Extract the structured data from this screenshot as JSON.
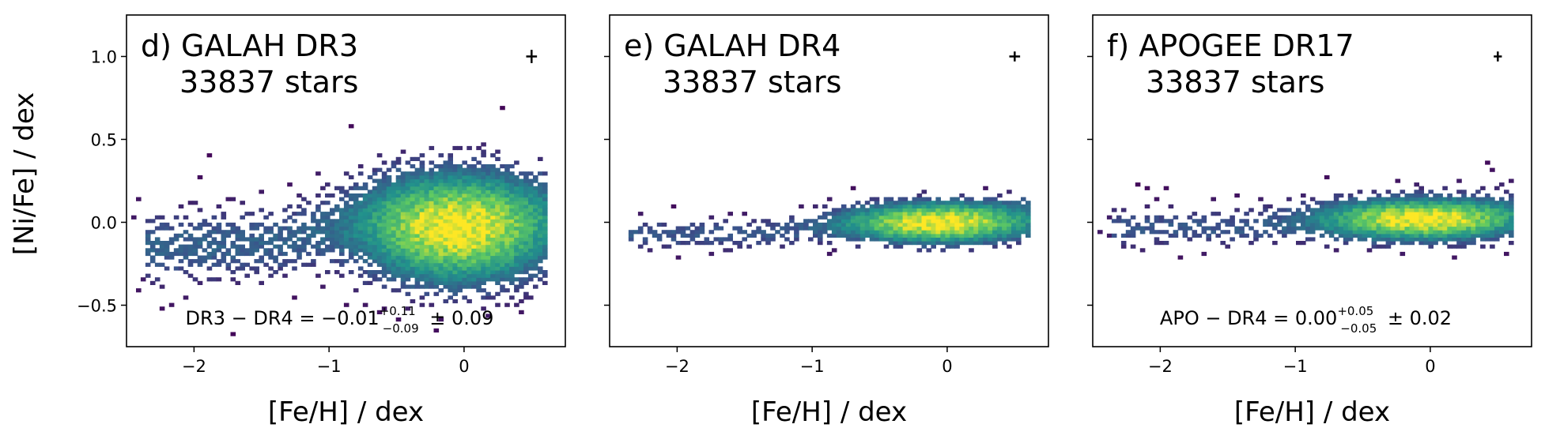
{
  "figure": {
    "y_axis_title": "[Ni/Fe] / dex",
    "x_axis_title": "[Fe/H] / dex",
    "colormap": [
      "#440154",
      "#3b528b",
      "#21918c",
      "#5ec962",
      "#fde725"
    ]
  },
  "chart_data": [
    {
      "type": "heatmap",
      "panel_label": "d) GALAH DR3",
      "count_label": "33837 stars",
      "xlabel": "[Fe/H] / dex",
      "ylabel": "[Ni/Fe] / dex",
      "xlim": [
        -2.5,
        0.75
      ],
      "ylim": [
        -0.75,
        1.25
      ],
      "x_ticks": [
        -2,
        -1,
        0
      ],
      "x_tick_labels": [
        "−2",
        "−1",
        "0"
      ],
      "y_ticks": [
        -0.5,
        0.0,
        0.5,
        1.0
      ],
      "y_tick_labels": [
        "−0.5",
        "0.0",
        "0.5",
        "1.0"
      ],
      "error_bar": {
        "x": 0.5,
        "y": 1.0,
        "xerr": 0.04,
        "yerr": 0.04
      },
      "stat": {
        "lhs": "DR3 − DR4 = −",
        "value": "0.01",
        "sup": "+0.11",
        "sub": "−0.09",
        "pm": "± 0.09"
      },
      "density": {
        "segments": [
          [
            -2.3,
            -0.15
          ],
          [
            -1.4,
            -0.12
          ],
          [
            -0.6,
            0.03
          ],
          [
            -0.1,
            -0.02
          ],
          [
            0.5,
            0.05
          ]
        ],
        "peak": [
          -0.05,
          -0.03
        ],
        "core_sx": 0.35,
        "core_sy": 0.16,
        "ridge_sy": 0.11,
        "faint_level": 0.07,
        "scatter_sy": 0.22
      }
    },
    {
      "type": "heatmap",
      "panel_label": "e) GALAH DR4",
      "count_label": "33837 stars",
      "xlabel": "[Fe/H] / dex",
      "ylabel": "",
      "xlim": [
        -2.5,
        0.75
      ],
      "ylim": [
        -0.75,
        1.25
      ],
      "x_ticks": [
        -2,
        -1,
        0
      ],
      "x_tick_labels": [
        "−2",
        "−1",
        "0"
      ],
      "y_ticks": [
        -0.5,
        0.0,
        0.5,
        1.0
      ],
      "y_tick_labels": [],
      "error_bar": {
        "x": 0.5,
        "y": 1.0,
        "xerr": 0.04,
        "yerr": 0.03
      },
      "stat": null,
      "density": {
        "segments": [
          [
            -2.3,
            -0.07
          ],
          [
            -1.4,
            -0.07
          ],
          [
            -0.6,
            -0.01
          ],
          [
            0.0,
            0.0
          ],
          [
            0.5,
            0.08
          ]
        ],
        "peak": [
          -0.05,
          0.0
        ],
        "core_sx": 0.35,
        "core_sy": 0.06,
        "ridge_sy": 0.05,
        "faint_level": 0.05,
        "scatter_sy": 0.08
      }
    },
    {
      "type": "heatmap",
      "panel_label": "f) APOGEE DR17",
      "count_label": "33837 stars",
      "xlabel": "[Fe/H] / dex",
      "ylabel": "",
      "xlim": [
        -2.5,
        0.75
      ],
      "ylim": [
        -0.75,
        1.25
      ],
      "x_ticks": [
        -2,
        -1,
        0
      ],
      "x_tick_labels": [
        "−2",
        "−1",
        "0"
      ],
      "y_ticks": [
        -0.5,
        0.0,
        0.5,
        1.0
      ],
      "y_tick_labels": [],
      "error_bar": {
        "x": 0.5,
        "y": 1.0,
        "xerr": 0.03,
        "yerr": 0.03
      },
      "stat": {
        "lhs": "APO − DR4 = ",
        "value": "0.00",
        "sup": "+0.05",
        "sub": "−0.05",
        "pm": "± 0.02"
      },
      "density": {
        "segments": [
          [
            -2.3,
            -0.03
          ],
          [
            -1.4,
            -0.03
          ],
          [
            -0.6,
            0.01
          ],
          [
            0.0,
            0.02
          ],
          [
            0.5,
            0.07
          ]
        ],
        "peak": [
          -0.05,
          0.02
        ],
        "core_sx": 0.38,
        "core_sy": 0.06,
        "ridge_sy": 0.06,
        "faint_level": 0.05,
        "scatter_sy": 0.12
      }
    }
  ]
}
